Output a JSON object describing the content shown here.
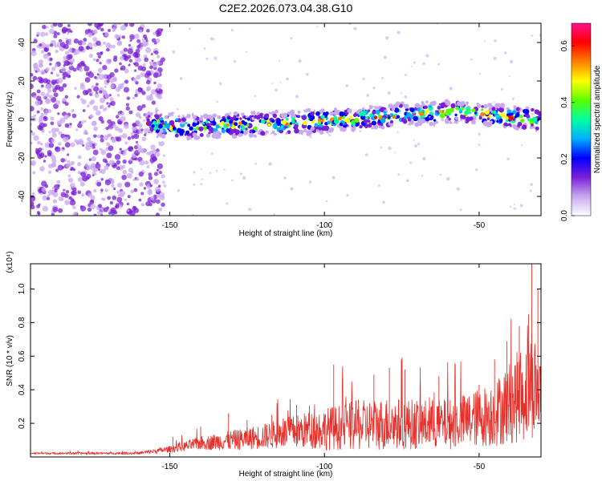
{
  "title": "C2E2.2026.073.04.38.G10",
  "chart_data": [
    {
      "type": "heatmap",
      "name": "spectrogram",
      "xlabel": "Height of straight line (km)",
      "ylabel": "Frequency (Hz)",
      "xlim": [
        -195,
        -30
      ],
      "ylim": [
        -50,
        50
      ],
      "xticks": [
        -150,
        -100,
        -50
      ],
      "yticks": [
        -40,
        -20,
        0,
        20,
        40
      ],
      "grid": false,
      "colorbar": {
        "label": "Normalized spectral amplitude",
        "range": [
          0.0,
          0.68
        ],
        "ticks": [
          0.0,
          0.2,
          0.4,
          0.6
        ],
        "colors": [
          "#ffffff",
          "#c8a8f0",
          "#7a1fd6",
          "#0000ff",
          "#00b0ff",
          "#00ffa0",
          "#5cff00",
          "#ffff00",
          "#ff8000",
          "#ff0000",
          "#ff1090"
        ]
      },
      "noise_region_x": [
        -195,
        -152
      ],
      "ridge": {
        "x": [
          -157,
          -145,
          -130,
          -115,
          -100,
          -85,
          -70,
          -55,
          -40,
          -30
        ],
        "y": [
          -2,
          -4,
          -3,
          -2,
          -1,
          1,
          3,
          4,
          1,
          0
        ],
        "peak_amplitude": 0.65
      }
    },
    {
      "type": "line",
      "name": "snr",
      "xlabel": "Height of straight line (km)",
      "ylabel": "SNR (10 * v/v)",
      "yscale_label": "(x10⁴)",
      "xlim": [
        -195,
        -30
      ],
      "ylim": [
        0,
        1.15
      ],
      "xticks": [
        -150,
        -100,
        -50
      ],
      "yticks": [
        0.2,
        0.4,
        0.6,
        0.8,
        1.0
      ],
      "grid": false,
      "color": "#e8302a",
      "envelope": {
        "x": [
          -195,
          -160,
          -150,
          -140,
          -130,
          -120,
          -110,
          -100,
          -90,
          -80,
          -70,
          -60,
          -50,
          -45,
          -40,
          -35,
          -33,
          -30
        ],
        "base": [
          0.02,
          0.02,
          0.04,
          0.07,
          0.08,
          0.1,
          0.12,
          0.13,
          0.14,
          0.15,
          0.15,
          0.15,
          0.18,
          0.2,
          0.25,
          0.3,
          0.35,
          0.3
        ],
        "spread": [
          0.01,
          0.015,
          0.04,
          0.08,
          0.12,
          0.15,
          0.2,
          0.25,
          0.3,
          0.32,
          0.3,
          0.3,
          0.35,
          0.4,
          0.5,
          0.6,
          0.7,
          0.45
        ]
      },
      "spikes": [
        {
          "x": -149,
          "y": 0.12
        },
        {
          "x": -140,
          "y": 0.18
        },
        {
          "x": -131,
          "y": 0.26
        },
        {
          "x": -125,
          "y": 0.22
        },
        {
          "x": -117,
          "y": 0.25
        },
        {
          "x": -109,
          "y": 0.31
        },
        {
          "x": -97,
          "y": 0.55
        },
        {
          "x": -89,
          "y": 0.34
        },
        {
          "x": -84,
          "y": 0.49
        },
        {
          "x": -79,
          "y": 0.53
        },
        {
          "x": -74,
          "y": 0.52
        },
        {
          "x": -69,
          "y": 0.42
        },
        {
          "x": -63,
          "y": 0.48
        },
        {
          "x": -55,
          "y": 0.32
        },
        {
          "x": -50,
          "y": 0.43
        },
        {
          "x": -45,
          "y": 0.58
        },
        {
          "x": -41,
          "y": 0.69
        },
        {
          "x": -37,
          "y": 0.78
        },
        {
          "x": -34,
          "y": 0.85
        },
        {
          "x": -33,
          "y": 1.15
        },
        {
          "x": -31,
          "y": 1.0
        }
      ]
    }
  ]
}
